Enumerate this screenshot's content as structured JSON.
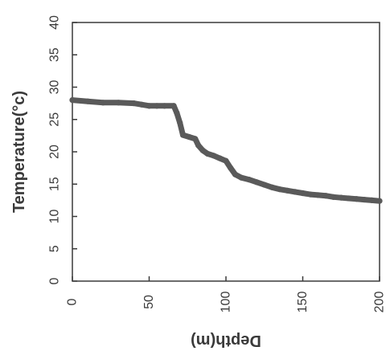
{
  "chart_data": {
    "type": "line",
    "xlabel": "Depth(m)",
    "ylabel": "Temperature(°c)",
    "xlim": [
      0,
      200
    ],
    "ylim": [
      0,
      40
    ],
    "x_ticks": [
      "0",
      "50",
      "100",
      "150",
      "200"
    ],
    "y_ticks": [
      "0",
      "5",
      "10",
      "15",
      "20",
      "25",
      "30",
      "35",
      "40"
    ],
    "grid": false,
    "series": [
      {
        "color": "#5a5a5a",
        "points": [
          [
            0,
            28.0
          ],
          [
            10,
            27.8
          ],
          [
            20,
            27.6
          ],
          [
            30,
            27.6
          ],
          [
            40,
            27.5
          ],
          [
            45,
            27.3
          ],
          [
            50,
            27.1
          ],
          [
            55,
            27.1
          ],
          [
            60,
            27.1
          ],
          [
            66,
            27.1
          ],
          [
            68,
            26.0
          ],
          [
            70,
            24.5
          ],
          [
            72,
            22.6
          ],
          [
            76,
            22.3
          ],
          [
            80,
            22.0
          ],
          [
            82,
            21.0
          ],
          [
            85,
            20.2
          ],
          [
            88,
            19.7
          ],
          [
            92,
            19.4
          ],
          [
            96,
            19.0
          ],
          [
            100,
            18.6
          ],
          [
            103,
            17.5
          ],
          [
            106,
            16.5
          ],
          [
            110,
            16.0
          ],
          [
            115,
            15.7
          ],
          [
            120,
            15.3
          ],
          [
            125,
            14.9
          ],
          [
            130,
            14.5
          ],
          [
            135,
            14.2
          ],
          [
            140,
            14.0
          ],
          [
            145,
            13.8
          ],
          [
            150,
            13.6
          ],
          [
            155,
            13.4
          ],
          [
            160,
            13.3
          ],
          [
            165,
            13.2
          ],
          [
            170,
            13.0
          ],
          [
            175,
            12.9
          ],
          [
            180,
            12.8
          ],
          [
            185,
            12.7
          ],
          [
            190,
            12.6
          ],
          [
            195,
            12.5
          ],
          [
            200,
            12.4
          ]
        ]
      }
    ]
  }
}
